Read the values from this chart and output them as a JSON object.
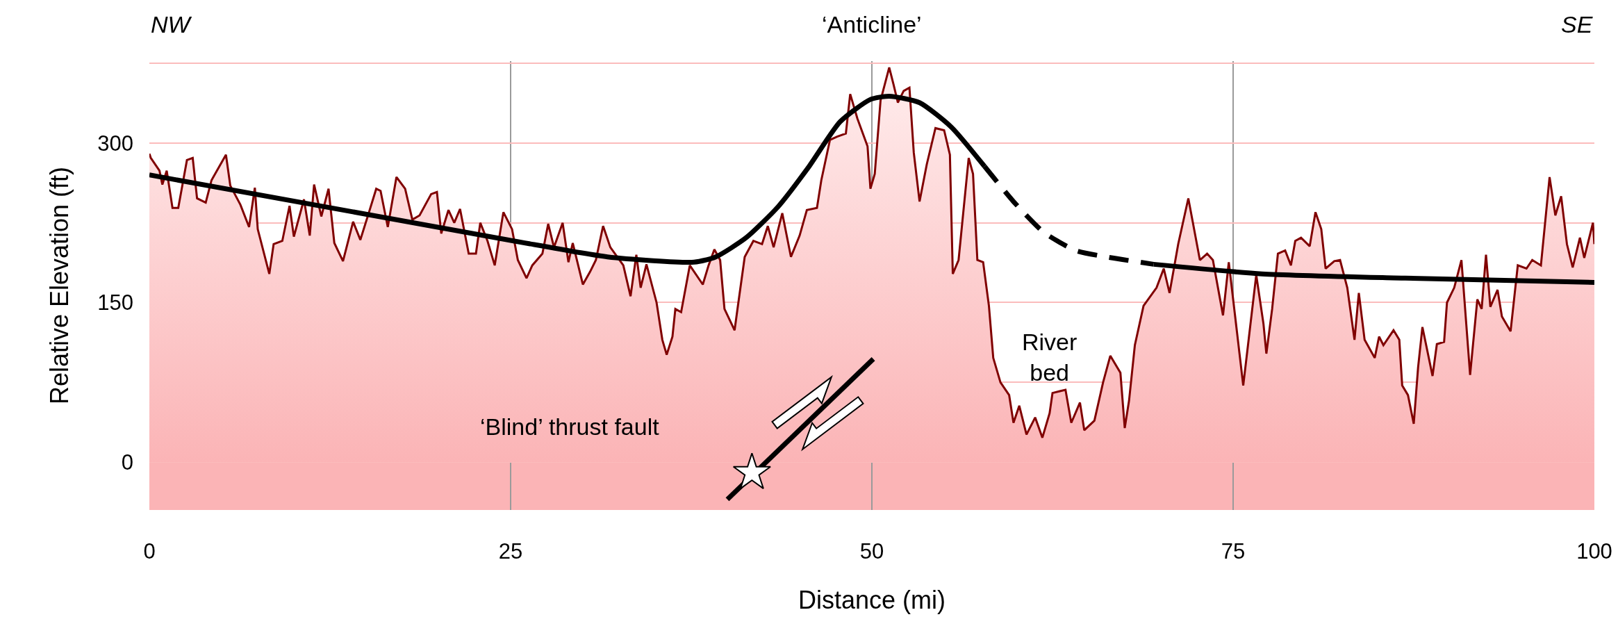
{
  "chart_data": {
    "type": "area",
    "xlabel": "Distance (mi)",
    "ylabel": "Relative Elevation (ft)",
    "xlim": [
      0,
      100
    ],
    "ylim": [
      -45,
      377
    ],
    "xticks": [
      0,
      25,
      50,
      75,
      100
    ],
    "yticks": [
      0,
      {
        "value": 75,
        "label": null
      },
      150,
      {
        "value": 225,
        "label": null
      },
      300,
      {
        "value": 375,
        "label": null
      }
    ],
    "grid": true,
    "annotations": [
      "NW",
      "‘Anticline’",
      "SE",
      "‘Blind’ thrust fault",
      "River\nbed"
    ],
    "bands": [
      {
        "axis": "y",
        "from": -45,
        "to": 0,
        "color": "#fbb4b6"
      }
    ],
    "series": [
      {
        "color": "#800000",
        "x": [
          0,
          0.1,
          0.7,
          0.9,
          1.2,
          1.6,
          2,
          2.6,
          3,
          3.3,
          3.9,
          4.3,
          5.3,
          5.6,
          6.3,
          6.9,
          7.3,
          7.5,
          8.3,
          8.6,
          9.2,
          9.7,
          10,
          10.7,
          11.1,
          11.4,
          11.9,
          12.4,
          12.8,
          13.4,
          14.1,
          14.6,
          15.2,
          15.7,
          16,
          16.5,
          17.1,
          17.7,
          18.2,
          18.7,
          19.5,
          19.9,
          20.2,
          20.7,
          21.1,
          21.5,
          22.1,
          22.6,
          22.9,
          23.4,
          23.9,
          24.5,
          25.1,
          25.5,
          26.1,
          26.5,
          27.2,
          27.6,
          28,
          28.6,
          29,
          29.3,
          30,
          30.5,
          30.9,
          31.4,
          31.9,
          32.8,
          33.3,
          33.7,
          34,
          34.4,
          35.1,
          35.5,
          35.8,
          36.2,
          36.4,
          36.8,
          37.4,
          38.3,
          38.7,
          39.1,
          39.5,
          39.8,
          40.5,
          40.7,
          41.2,
          41.8,
          42.4,
          42.8,
          43.2,
          43.8,
          44.4,
          45,
          45.5,
          46.2,
          46.5,
          47.1,
          47.6,
          48.2,
          48.5,
          49,
          49.7,
          49.9,
          50.2,
          50.6,
          51.2,
          51.5,
          51.8,
          52.2,
          52.6,
          52.9,
          53.3,
          53.8,
          54.4,
          55,
          55.4,
          55.6,
          56,
          56.7,
          57,
          57.3,
          57.7,
          58.1,
          58.4,
          58.9,
          59.5,
          59.8,
          60.2,
          60.7,
          61.3,
          61.8,
          62.3,
          62.5,
          63.4,
          63.8,
          64.4,
          64.7,
          65.4,
          66,
          66.5,
          67.2,
          67.5,
          67.8,
          68.2,
          68.8,
          69.7,
          70.2,
          70.6,
          71.2,
          71.9,
          72.7,
          73.2,
          73.6,
          74.3,
          74.7,
          75.7,
          76.6,
          77.1,
          77.3,
          77.7,
          78.1,
          78.6,
          79,
          79.3,
          79.7,
          80.3,
          80.7,
          81.1,
          81.4,
          82,
          82.4,
          82.9,
          83.4,
          83.7,
          84.1,
          84.8,
          85.1,
          85.4,
          86.1,
          86.5,
          86.7,
          87.1,
          87.5,
          87.8,
          88.1,
          88.8,
          89.1,
          89.6,
          89.8,
          90.3,
          90.8,
          91.4,
          91.9,
          92.2,
          92.5,
          92.8,
          93.3,
          93.6,
          94.2,
          94.7,
          95.3,
          95.7,
          96.3,
          96.9,
          97.3,
          97.7,
          98.1,
          98.5,
          99,
          99.3,
          99.9,
          100
        ],
        "values": [
          290,
          286,
          274,
          261,
          274,
          239,
          239,
          284,
          286,
          248,
          244,
          265,
          289,
          260,
          242,
          221,
          258,
          219,
          177,
          205,
          208,
          241,
          212,
          247,
          213,
          261,
          231,
          257,
          206,
          189,
          226,
          209,
          235,
          257,
          255,
          221,
          268,
          257,
          228,
          232,
          252,
          254,
          215,
          237,
          225,
          238,
          196,
          196,
          225,
          208,
          185,
          235,
          219,
          190,
          173,
          185,
          196,
          224,
          202,
          225,
          188,
          206,
          167,
          179,
          190,
          222,
          202,
          185,
          156,
          195,
          164,
          186,
          150,
          115,
          101,
          118,
          144,
          141,
          185,
          167,
          185,
          200,
          190,
          144,
          124,
          144,
          193,
          208,
          205,
          222,
          202,
          234,
          193,
          213,
          237,
          239,
          265,
          303,
          306,
          309,
          346,
          323,
          297,
          257,
          271,
          340,
          371,
          355,
          338,
          349,
          352,
          291,
          245,
          280,
          314,
          312,
          289,
          177,
          190,
          286,
          271,
          190,
          188,
          147,
          98,
          75,
          63,
          37,
          53,
          26,
          42,
          23,
          46,
          65,
          68,
          37,
          56,
          30,
          39,
          75,
          100,
          84,
          32,
          58,
          110,
          147,
          164,
          182,
          159,
          205,
          248,
          190,
          196,
          190,
          138,
          188,
          72,
          176,
          130,
          102,
          144,
          196,
          199,
          185,
          208,
          211,
          203,
          235,
          219,
          182,
          189,
          190,
          164,
          115,
          159,
          115,
          98,
          118,
          110,
          124,
          115,
          72,
          63,
          36,
          89,
          127,
          81,
          111,
          113,
          150,
          164,
          190,
          82,
          153,
          144,
          195,
          146,
          162,
          137,
          123,
          185,
          182,
          190,
          185,
          268,
          232,
          250,
          205,
          183,
          211,
          192,
          225,
          205
        ]
      },
      {
        "type": "line",
        "color": "#000000",
        "line_style": "solid",
        "x": [
          0,
          25.2,
          31.7,
          37.7,
          39.2,
          41.3,
          43.5,
          45.6,
          47.8,
          49.9,
          51.2,
          53.3,
          55.5,
          57.8
        ],
        "values": [
          270,
          208,
          193,
          188,
          193,
          211,
          240,
          277,
          320,
          341,
          344,
          338,
          315,
          278
        ]
      },
      {
        "type": "line",
        "color": "#000000",
        "line_style": "dashed",
        "x": [
          57.8,
          59.8,
          61.9,
          64.1,
          66.2,
          69.5
        ],
        "values": [
          278,
          245,
          216,
          199,
          193,
          186
        ]
      },
      {
        "type": "line",
        "color": "#000000",
        "line_style": "solid",
        "x": [
          69.5,
          77,
          86.9,
          100
        ],
        "values": [
          186,
          177,
          173,
          169
        ]
      },
      {
        "type": "line",
        "color": "#000000",
        "line_style": "solid",
        "x": [
          40,
          50.1
        ],
        "values": [
          -35,
          97
        ]
      },
      {
        "type": "scatter",
        "color": "#ffffff",
        "marker": "star",
        "x": [
          41.7
        ],
        "values": [
          -10
        ]
      }
    ]
  }
}
